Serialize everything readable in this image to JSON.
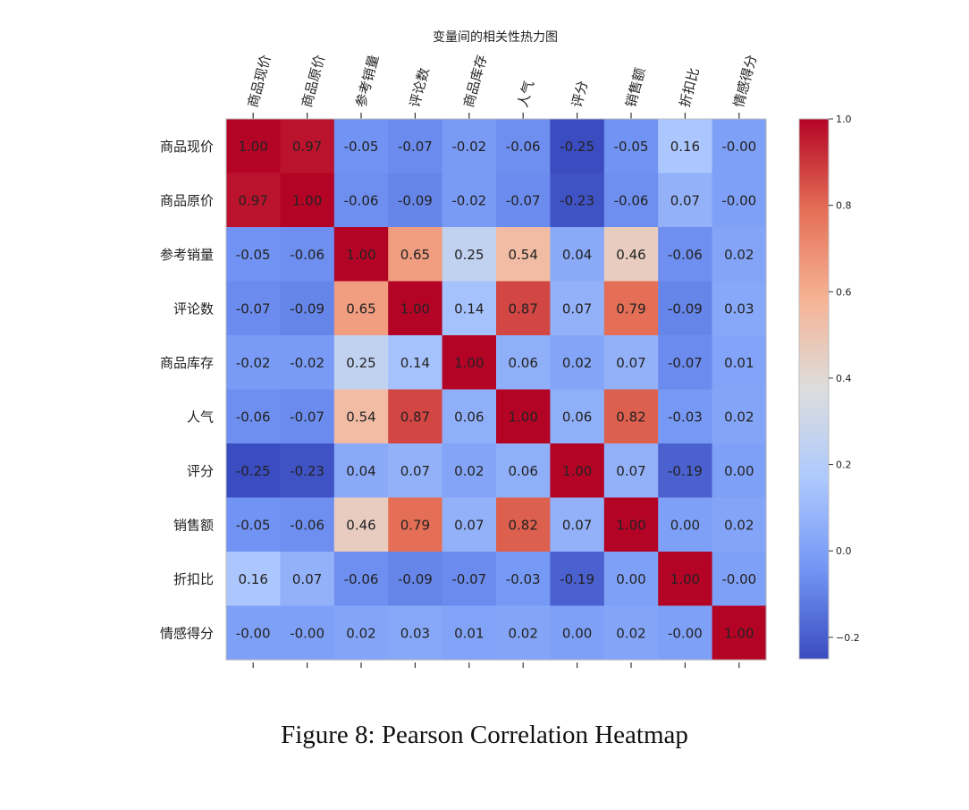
{
  "chart_data": {
    "type": "heatmap",
    "title": "变量间的相关性热力图",
    "row_labels": [
      "商品现价",
      "商品原价",
      "参考销量",
      "评论数",
      "商品库存",
      "人气",
      "评分",
      "销售额",
      "折扣比",
      "情感得分"
    ],
    "col_labels": [
      "商品现价",
      "商品原价",
      "参考销量",
      "评论数",
      "商品库存",
      "人气",
      "评分",
      "销售额",
      "折扣比",
      "情感得分"
    ],
    "values": [
      [
        1.0,
        0.97,
        -0.05,
        -0.07,
        -0.02,
        -0.06,
        -0.25,
        -0.05,
        0.16,
        -0.0
      ],
      [
        0.97,
        1.0,
        -0.06,
        -0.09,
        -0.02,
        -0.07,
        -0.23,
        -0.06,
        0.07,
        -0.0
      ],
      [
        -0.05,
        -0.06,
        1.0,
        0.65,
        0.25,
        0.54,
        0.04,
        0.46,
        -0.06,
        0.02
      ],
      [
        -0.07,
        -0.09,
        0.65,
        1.0,
        0.14,
        0.87,
        0.07,
        0.79,
        -0.09,
        0.03
      ],
      [
        -0.02,
        -0.02,
        0.25,
        0.14,
        1.0,
        0.06,
        0.02,
        0.07,
        -0.07,
        0.01
      ],
      [
        -0.06,
        -0.07,
        0.54,
        0.87,
        0.06,
        1.0,
        0.06,
        0.82,
        -0.03,
        0.02
      ],
      [
        -0.25,
        -0.23,
        0.04,
        0.07,
        0.02,
        0.06,
        1.0,
        0.07,
        -0.19,
        0.0
      ],
      [
        -0.05,
        -0.06,
        0.46,
        0.79,
        0.07,
        0.82,
        0.07,
        1.0,
        0.0,
        0.02
      ],
      [
        0.16,
        0.07,
        -0.06,
        -0.09,
        -0.07,
        -0.03,
        -0.19,
        0.0,
        1.0,
        -0.0
      ],
      [
        -0.0,
        -0.0,
        0.02,
        0.03,
        0.01,
        0.02,
        0.0,
        0.02,
        -0.0,
        1.0
      ]
    ],
    "cell_labels": [
      [
        "1.00",
        "0.97",
        "-0.05",
        "-0.07",
        "-0.02",
        "-0.06",
        "-0.25",
        "-0.05",
        "0.16",
        "-0.00"
      ],
      [
        "0.97",
        "1.00",
        "-0.06",
        "-0.09",
        "-0.02",
        "-0.07",
        "-0.23",
        "-0.06",
        "0.07",
        "-0.00"
      ],
      [
        "-0.05",
        "-0.06",
        "1.00",
        "0.65",
        "0.25",
        "0.54",
        "0.04",
        "0.46",
        "-0.06",
        "0.02"
      ],
      [
        "-0.07",
        "-0.09",
        "0.65",
        "1.00",
        "0.14",
        "0.87",
        "0.07",
        "0.79",
        "-0.09",
        "0.03"
      ],
      [
        "-0.02",
        "-0.02",
        "0.25",
        "0.14",
        "1.00",
        "0.06",
        "0.02",
        "0.07",
        "-0.07",
        "0.01"
      ],
      [
        "-0.06",
        "-0.07",
        "0.54",
        "0.87",
        "0.06",
        "1.00",
        "0.06",
        "0.82",
        "-0.03",
        "0.02"
      ],
      [
        "-0.25",
        "-0.23",
        "0.04",
        "0.07",
        "0.02",
        "0.06",
        "1.00",
        "0.07",
        "-0.19",
        "0.00"
      ],
      [
        "-0.05",
        "-0.06",
        "0.46",
        "0.79",
        "0.07",
        "0.82",
        "0.07",
        "1.00",
        "0.00",
        "0.02"
      ],
      [
        "0.16",
        "0.07",
        "-0.06",
        "-0.09",
        "-0.07",
        "-0.03",
        "-0.19",
        "0.00",
        "1.00",
        "-0.00"
      ],
      [
        "-0.00",
        "-0.00",
        "0.02",
        "0.03",
        "0.01",
        "0.02",
        "0.00",
        "0.02",
        "-0.00",
        "1.00"
      ]
    ],
    "colormap": "coolwarm",
    "colormap_stops": [
      "#3b4cc0",
      "#7396f5",
      "#aec9fd",
      "#dddddd",
      "#f6b394",
      "#e46e56",
      "#b40426"
    ],
    "vmin": -0.25,
    "vmax": 1.0,
    "colorbar": {
      "ticks": [
        -0.2,
        0.0,
        0.2,
        0.4,
        0.6,
        0.8,
        1.0
      ],
      "tick_labels": [
        "−0.2",
        "0.0",
        "0.2",
        "0.4",
        "0.6",
        "0.8",
        "1.0"
      ]
    },
    "grid": false,
    "legend": "colorbar-right"
  },
  "caption": "Figure 8: Pearson Correlation Heatmap"
}
